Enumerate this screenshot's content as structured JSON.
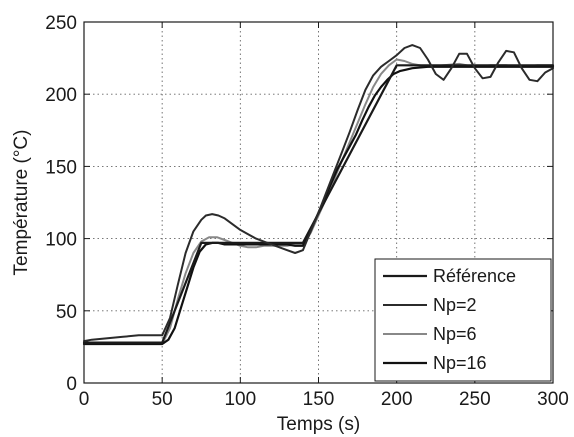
{
  "chart_data": {
    "type": "line",
    "title": "",
    "xlabel": "Temps (s)",
    "ylabel": "Température (°C)",
    "xlim": [
      0,
      300
    ],
    "ylim": [
      0,
      250
    ],
    "xticks": [
      "0",
      "50",
      "100",
      "150",
      "200",
      "250",
      "300"
    ],
    "yticks": [
      "0",
      "50",
      "100",
      "150",
      "200",
      "250"
    ],
    "grid": true,
    "grid_style": "dotted",
    "legend_position": "bottom-right",
    "series": [
      {
        "name": "Référence",
        "color": "#1a1a1a",
        "x": [
          0,
          50,
          75,
          140,
          200,
          300
        ],
        "y": [
          28,
          28,
          97,
          97,
          220,
          220
        ]
      },
      {
        "name": "Np=2",
        "color": "#2b2b2b",
        "x": [
          0,
          5,
          15,
          25,
          35,
          45,
          50,
          55,
          60,
          65,
          70,
          75,
          78,
          82,
          86,
          90,
          95,
          100,
          105,
          110,
          115,
          120,
          125,
          130,
          135,
          140,
          145,
          150,
          155,
          160,
          165,
          170,
          175,
          180,
          185,
          190,
          195,
          200,
          205,
          210,
          215,
          220,
          225,
          230,
          235,
          240,
          245,
          250,
          255,
          260,
          265,
          270,
          275,
          280,
          285,
          290,
          295,
          300
        ],
        "y": [
          29,
          30,
          31,
          32,
          33,
          33,
          33,
          45,
          68,
          90,
          105,
          113,
          116,
          117,
          116,
          114,
          110,
          106,
          103,
          100,
          98,
          96,
          94,
          92,
          90,
          92,
          105,
          118,
          132,
          146,
          160,
          174,
          189,
          203,
          213,
          219,
          223,
          227,
          232,
          234,
          232,
          224,
          214,
          210,
          218,
          228,
          228,
          218,
          211,
          212,
          222,
          230,
          229,
          218,
          210,
          209,
          215,
          218
        ]
      },
      {
        "name": "Np=6",
        "color": "#888888",
        "x": [
          0,
          50,
          55,
          60,
          65,
          70,
          75,
          80,
          85,
          90,
          95,
          100,
          105,
          110,
          115,
          120,
          125,
          130,
          135,
          140,
          145,
          150,
          155,
          160,
          165,
          170,
          175,
          180,
          185,
          190,
          195,
          200,
          205,
          210,
          215,
          220,
          230,
          240,
          250,
          260,
          270,
          280,
          290,
          300
        ],
        "y": [
          27,
          27,
          38,
          58,
          76,
          90,
          98,
          101,
          101,
          99,
          97,
          95,
          94,
          94,
          95,
          95,
          95,
          95,
          96,
          96,
          104,
          116,
          128,
          141,
          154,
          167,
          180,
          193,
          205,
          214,
          220,
          224,
          223,
          221,
          220,
          219,
          220,
          221,
          219,
          220,
          220,
          219,
          220,
          220
        ]
      },
      {
        "name": "Np=16",
        "color": "#111111",
        "x": [
          0,
          50,
          54,
          58,
          62,
          66,
          70,
          74,
          78,
          82,
          86,
          90,
          95,
          100,
          105,
          110,
          115,
          120,
          125,
          130,
          135,
          140,
          143,
          146,
          150,
          154,
          158,
          162,
          166,
          170,
          174,
          178,
          182,
          186,
          190,
          194,
          198,
          202,
          206,
          210,
          220,
          230,
          240,
          250,
          260,
          270,
          280,
          290,
          300
        ],
        "y": [
          27,
          27,
          30,
          38,
          52,
          66,
          80,
          91,
          96,
          97,
          97,
          96,
          96,
          96,
          96,
          96,
          96,
          96,
          96,
          96,
          95,
          95,
          102,
          108,
          118,
          128,
          138,
          148,
          156,
          164,
          172,
          182,
          191,
          199,
          205,
          210,
          214,
          216,
          217,
          218,
          219,
          219,
          219,
          219,
          219,
          219,
          219,
          219,
          219
        ]
      }
    ]
  }
}
